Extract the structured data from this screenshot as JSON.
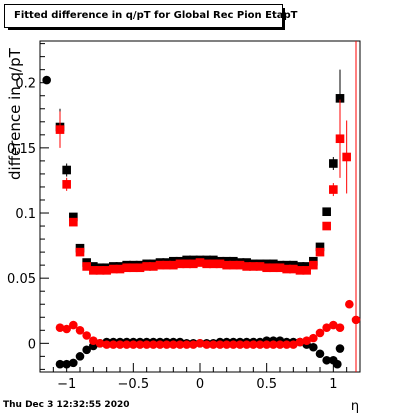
{
  "chart_data": {
    "type": "scatter",
    "title": "Fitted difference in q/pT for Global Rec Pion EtapT",
    "xlabel": "η",
    "ylabel": "difference in q/pT",
    "xlim": [
      -1.2,
      1.2
    ],
    "ylim": [
      -0.022,
      0.232
    ],
    "x_ticks": [
      "−1",
      "−0.5",
      "0",
      "0.5",
      "1"
    ],
    "y_ticks": [
      "0",
      "0.05",
      "0.1",
      "0.15",
      "0.2"
    ],
    "x_tick_values": [
      -1,
      -0.5,
      0,
      0.5,
      1
    ],
    "y_tick_values": [
      0,
      0.05,
      0.1,
      0.15,
      0.2
    ],
    "series": [
      {
        "color": "#000000",
        "marker": "square",
        "points": [
          {
            "x": -1.05,
            "y": 0.166,
            "err": 0.014
          },
          {
            "x": -1.0,
            "y": 0.133,
            "err": 0.005
          },
          {
            "x": -0.95,
            "y": 0.097,
            "err": 0.0
          },
          {
            "x": -0.9,
            "y": 0.073,
            "err": 0.0
          },
          {
            "x": -0.85,
            "y": 0.062,
            "err": 0.0
          },
          {
            "x": -0.8,
            "y": 0.059,
            "err": 0.0
          },
          {
            "x": -0.75,
            "y": 0.058,
            "err": 0.0
          },
          {
            "x": -0.7,
            "y": 0.058,
            "err": 0.0
          },
          {
            "x": -0.65,
            "y": 0.059,
            "err": 0.0
          },
          {
            "x": -0.6,
            "y": 0.059,
            "err": 0.0
          },
          {
            "x": -0.55,
            "y": 0.06,
            "err": 0.0
          },
          {
            "x": -0.5,
            "y": 0.06,
            "err": 0.0
          },
          {
            "x": -0.45,
            "y": 0.06,
            "err": 0.0
          },
          {
            "x": -0.4,
            "y": 0.061,
            "err": 0.0
          },
          {
            "x": -0.35,
            "y": 0.061,
            "err": 0.0
          },
          {
            "x": -0.3,
            "y": 0.062,
            "err": 0.0
          },
          {
            "x": -0.25,
            "y": 0.062,
            "err": 0.0
          },
          {
            "x": -0.2,
            "y": 0.063,
            "err": 0.0
          },
          {
            "x": -0.15,
            "y": 0.063,
            "err": 0.0
          },
          {
            "x": -0.1,
            "y": 0.064,
            "err": 0.0
          },
          {
            "x": -0.05,
            "y": 0.064,
            "err": 0.0
          },
          {
            "x": 0.0,
            "y": 0.064,
            "err": 0.0
          },
          {
            "x": 0.05,
            "y": 0.064,
            "err": 0.0
          },
          {
            "x": 0.1,
            "y": 0.064,
            "err": 0.0
          },
          {
            "x": 0.15,
            "y": 0.063,
            "err": 0.0
          },
          {
            "x": 0.2,
            "y": 0.063,
            "err": 0.0
          },
          {
            "x": 0.25,
            "y": 0.063,
            "err": 0.0
          },
          {
            "x": 0.3,
            "y": 0.062,
            "err": 0.0
          },
          {
            "x": 0.35,
            "y": 0.062,
            "err": 0.0
          },
          {
            "x": 0.4,
            "y": 0.061,
            "err": 0.0
          },
          {
            "x": 0.45,
            "y": 0.061,
            "err": 0.0
          },
          {
            "x": 0.5,
            "y": 0.061,
            "err": 0.0
          },
          {
            "x": 0.55,
            "y": 0.061,
            "err": 0.0
          },
          {
            "x": 0.6,
            "y": 0.06,
            "err": 0.0
          },
          {
            "x": 0.65,
            "y": 0.06,
            "err": 0.0
          },
          {
            "x": 0.7,
            "y": 0.06,
            "err": 0.0
          },
          {
            "x": 0.75,
            "y": 0.059,
            "err": 0.0
          },
          {
            "x": 0.8,
            "y": 0.059,
            "err": 0.0
          },
          {
            "x": 0.85,
            "y": 0.063,
            "err": 0.0
          },
          {
            "x": 0.9,
            "y": 0.074,
            "err": 0.0
          },
          {
            "x": 0.95,
            "y": 0.101,
            "err": 0.0
          },
          {
            "x": 1.0,
            "y": 0.138,
            "err": 0.005
          },
          {
            "x": 1.05,
            "y": 0.188,
            "err": 0.022
          },
          {
            "x": -1.05,
            "y": -0.016,
            "err": 0.0
          },
          {
            "x": -1.0,
            "y": -0.016,
            "err": 0.0
          },
          {
            "x": -0.95,
            "y": -0.015,
            "err": 0.0
          },
          {
            "x": -0.9,
            "y": -0.01,
            "err": 0.0
          },
          {
            "x": -0.85,
            "y": -0.005,
            "err": 0.0
          },
          {
            "x": -0.8,
            "y": -0.002,
            "err": 0.0
          },
          {
            "x": -0.75,
            "y": 0.0,
            "err": 0.0
          },
          {
            "x": -0.7,
            "y": 0.001,
            "err": 0.0
          },
          {
            "x": -0.65,
            "y": 0.001,
            "err": 0.0
          },
          {
            "x": -0.6,
            "y": 0.001,
            "err": 0.0
          },
          {
            "x": -0.55,
            "y": 0.001,
            "err": 0.0
          },
          {
            "x": -0.5,
            "y": 0.001,
            "err": 0.0
          },
          {
            "x": -0.45,
            "y": 0.001,
            "err": 0.0
          },
          {
            "x": -0.4,
            "y": 0.001,
            "err": 0.0
          },
          {
            "x": -0.35,
            "y": 0.001,
            "err": 0.0
          },
          {
            "x": -0.3,
            "y": 0.001,
            "err": 0.0
          },
          {
            "x": -0.25,
            "y": 0.001,
            "err": 0.0
          },
          {
            "x": -0.2,
            "y": 0.001,
            "err": 0.0
          },
          {
            "x": -0.15,
            "y": 0.001,
            "err": 0.0
          },
          {
            "x": -0.1,
            "y": 0.0,
            "err": 0.0
          },
          {
            "x": -0.05,
            "y": 0.0,
            "err": 0.0
          },
          {
            "x": 0.0,
            "y": 0.0,
            "err": 0.0
          },
          {
            "x": 0.05,
            "y": 0.0,
            "err": 0.0
          },
          {
            "x": 0.1,
            "y": 0.0,
            "err": 0.0
          },
          {
            "x": 0.15,
            "y": 0.001,
            "err": 0.0
          },
          {
            "x": 0.2,
            "y": 0.001,
            "err": 0.0
          },
          {
            "x": 0.25,
            "y": 0.001,
            "err": 0.0
          },
          {
            "x": 0.3,
            "y": 0.001,
            "err": 0.0
          },
          {
            "x": 0.35,
            "y": 0.001,
            "err": 0.0
          },
          {
            "x": 0.4,
            "y": 0.001,
            "err": 0.0
          },
          {
            "x": 0.45,
            "y": 0.001,
            "err": 0.0
          },
          {
            "x": 0.5,
            "y": 0.002,
            "err": 0.0
          },
          {
            "x": 0.55,
            "y": 0.002,
            "err": 0.0
          },
          {
            "x": 0.6,
            "y": 0.002,
            "err": 0.0
          },
          {
            "x": 0.65,
            "y": 0.001,
            "err": 0.0
          },
          {
            "x": 0.7,
            "y": 0.001,
            "err": 0.0
          },
          {
            "x": 0.75,
            "y": 0.001,
            "err": 0.0
          },
          {
            "x": 0.8,
            "y": -0.001,
            "err": 0.0
          },
          {
            "x": 0.85,
            "y": -0.003,
            "err": 0.0
          },
          {
            "x": 0.9,
            "y": -0.008,
            "err": 0.0
          },
          {
            "x": 0.95,
            "y": -0.013,
            "err": 0.0
          },
          {
            "x": 1.0,
            "y": -0.013,
            "err": 0.0
          },
          {
            "x": 1.05,
            "y": -0.004,
            "err": 0.0
          },
          {
            "x": -1.15,
            "y": 0.202,
            "err": 0.0
          },
          {
            "x": 1.03,
            "y": -0.016,
            "err": 0.0
          }
        ]
      },
      {
        "color": "#ff0000",
        "marker": "square",
        "points": [
          {
            "x": -1.05,
            "y": 0.164,
            "err": 0.014
          },
          {
            "x": -1.0,
            "y": 0.122,
            "err": 0.005
          },
          {
            "x": -0.95,
            "y": 0.093,
            "err": 0.0
          },
          {
            "x": -0.9,
            "y": 0.07,
            "err": 0.0
          },
          {
            "x": -0.85,
            "y": 0.059,
            "err": 0.0
          },
          {
            "x": -0.8,
            "y": 0.056,
            "err": 0.0
          },
          {
            "x": -0.75,
            "y": 0.056,
            "err": 0.0
          },
          {
            "x": -0.7,
            "y": 0.056,
            "err": 0.0
          },
          {
            "x": -0.65,
            "y": 0.057,
            "err": 0.0
          },
          {
            "x": -0.6,
            "y": 0.057,
            "err": 0.0
          },
          {
            "x": -0.55,
            "y": 0.058,
            "err": 0.0
          },
          {
            "x": -0.5,
            "y": 0.058,
            "err": 0.0
          },
          {
            "x": -0.45,
            "y": 0.058,
            "err": 0.0
          },
          {
            "x": -0.4,
            "y": 0.059,
            "err": 0.0
          },
          {
            "x": -0.35,
            "y": 0.059,
            "err": 0.0
          },
          {
            "x": -0.3,
            "y": 0.06,
            "err": 0.0
          },
          {
            "x": -0.25,
            "y": 0.06,
            "err": 0.0
          },
          {
            "x": -0.2,
            "y": 0.06,
            "err": 0.0
          },
          {
            "x": -0.15,
            "y": 0.061,
            "err": 0.0
          },
          {
            "x": -0.1,
            "y": 0.061,
            "err": 0.0
          },
          {
            "x": -0.05,
            "y": 0.061,
            "err": 0.0
          },
          {
            "x": 0.0,
            "y": 0.062,
            "err": 0.0
          },
          {
            "x": 0.05,
            "y": 0.061,
            "err": 0.0
          },
          {
            "x": 0.1,
            "y": 0.061,
            "err": 0.0
          },
          {
            "x": 0.15,
            "y": 0.061,
            "err": 0.0
          },
          {
            "x": 0.2,
            "y": 0.06,
            "err": 0.0
          },
          {
            "x": 0.25,
            "y": 0.06,
            "err": 0.0
          },
          {
            "x": 0.3,
            "y": 0.06,
            "err": 0.0
          },
          {
            "x": 0.35,
            "y": 0.059,
            "err": 0.0
          },
          {
            "x": 0.4,
            "y": 0.059,
            "err": 0.0
          },
          {
            "x": 0.45,
            "y": 0.059,
            "err": 0.0
          },
          {
            "x": 0.5,
            "y": 0.058,
            "err": 0.0
          },
          {
            "x": 0.55,
            "y": 0.058,
            "err": 0.0
          },
          {
            "x": 0.6,
            "y": 0.058,
            "err": 0.0
          },
          {
            "x": 0.65,
            "y": 0.057,
            "err": 0.0
          },
          {
            "x": 0.7,
            "y": 0.057,
            "err": 0.0
          },
          {
            "x": 0.75,
            "y": 0.056,
            "err": 0.0
          },
          {
            "x": 0.8,
            "y": 0.056,
            "err": 0.0
          },
          {
            "x": 0.85,
            "y": 0.06,
            "err": 0.0
          },
          {
            "x": 0.9,
            "y": 0.07,
            "err": 0.0
          },
          {
            "x": 0.95,
            "y": 0.09,
            "err": 0.0
          },
          {
            "x": 1.0,
            "y": 0.118,
            "err": 0.005
          },
          {
            "x": 1.05,
            "y": 0.157,
            "err": 0.03
          },
          {
            "x": 1.1,
            "y": 0.143,
            "err": 0.028
          },
          {
            "x": -1.05,
            "y": 0.012,
            "err": 0.0
          },
          {
            "x": -1.0,
            "y": 0.011,
            "err": 0.0
          },
          {
            "x": -0.95,
            "y": 0.014,
            "err": 0.0
          },
          {
            "x": -0.9,
            "y": 0.01,
            "err": 0.0
          },
          {
            "x": -0.85,
            "y": 0.006,
            "err": 0.0
          },
          {
            "x": -0.8,
            "y": 0.002,
            "err": 0.0
          },
          {
            "x": -0.75,
            "y": 0.0,
            "err": 0.0
          },
          {
            "x": -0.7,
            "y": -0.001,
            "err": 0.0
          },
          {
            "x": -0.65,
            "y": -0.001,
            "err": 0.0
          },
          {
            "x": -0.6,
            "y": -0.001,
            "err": 0.0
          },
          {
            "x": -0.55,
            "y": -0.001,
            "err": 0.0
          },
          {
            "x": -0.5,
            "y": -0.001,
            "err": 0.0
          },
          {
            "x": -0.45,
            "y": -0.001,
            "err": 0.0
          },
          {
            "x": -0.4,
            "y": -0.001,
            "err": 0.0
          },
          {
            "x": -0.35,
            "y": -0.001,
            "err": 0.0
          },
          {
            "x": -0.3,
            "y": -0.001,
            "err": 0.0
          },
          {
            "x": -0.25,
            "y": -0.001,
            "err": 0.0
          },
          {
            "x": -0.2,
            "y": -0.001,
            "err": 0.0
          },
          {
            "x": -0.15,
            "y": -0.001,
            "err": 0.0
          },
          {
            "x": -0.1,
            "y": -0.001,
            "err": 0.0
          },
          {
            "x": -0.05,
            "y": -0.001,
            "err": 0.0
          },
          {
            "x": 0.0,
            "y": 0.0,
            "err": 0.0
          },
          {
            "x": 0.05,
            "y": -0.001,
            "err": 0.0
          },
          {
            "x": 0.1,
            "y": -0.001,
            "err": 0.0
          },
          {
            "x": 0.15,
            "y": -0.001,
            "err": 0.0
          },
          {
            "x": 0.2,
            "y": -0.001,
            "err": 0.0
          },
          {
            "x": 0.25,
            "y": -0.001,
            "err": 0.0
          },
          {
            "x": 0.3,
            "y": -0.001,
            "err": 0.0
          },
          {
            "x": 0.35,
            "y": -0.001,
            "err": 0.0
          },
          {
            "x": 0.4,
            "y": -0.001,
            "err": 0.0
          },
          {
            "x": 0.45,
            "y": -0.001,
            "err": 0.0
          },
          {
            "x": 0.5,
            "y": -0.001,
            "err": 0.0
          },
          {
            "x": 0.55,
            "y": -0.001,
            "err": 0.0
          },
          {
            "x": 0.6,
            "y": -0.001,
            "err": 0.0
          },
          {
            "x": 0.65,
            "y": -0.001,
            "err": 0.0
          },
          {
            "x": 0.7,
            "y": -0.001,
            "err": 0.0
          },
          {
            "x": 0.75,
            "y": 0.001,
            "err": 0.0
          },
          {
            "x": 0.8,
            "y": 0.002,
            "err": 0.0
          },
          {
            "x": 0.85,
            "y": 0.004,
            "err": 0.0
          },
          {
            "x": 0.9,
            "y": 0.008,
            "err": 0.0
          },
          {
            "x": 0.95,
            "y": 0.012,
            "err": 0.0
          },
          {
            "x": 1.0,
            "y": 0.014,
            "err": 0.0
          },
          {
            "x": 1.05,
            "y": 0.012,
            "err": 0.0
          },
          {
            "x": 1.12,
            "y": 0.03,
            "err": 0.0
          },
          {
            "x": 1.17,
            "y": 0.018,
            "err": 0.0
          }
        ]
      }
    ]
  },
  "footer": {
    "date": "Thu Dec  3 12:32:55 2020"
  }
}
